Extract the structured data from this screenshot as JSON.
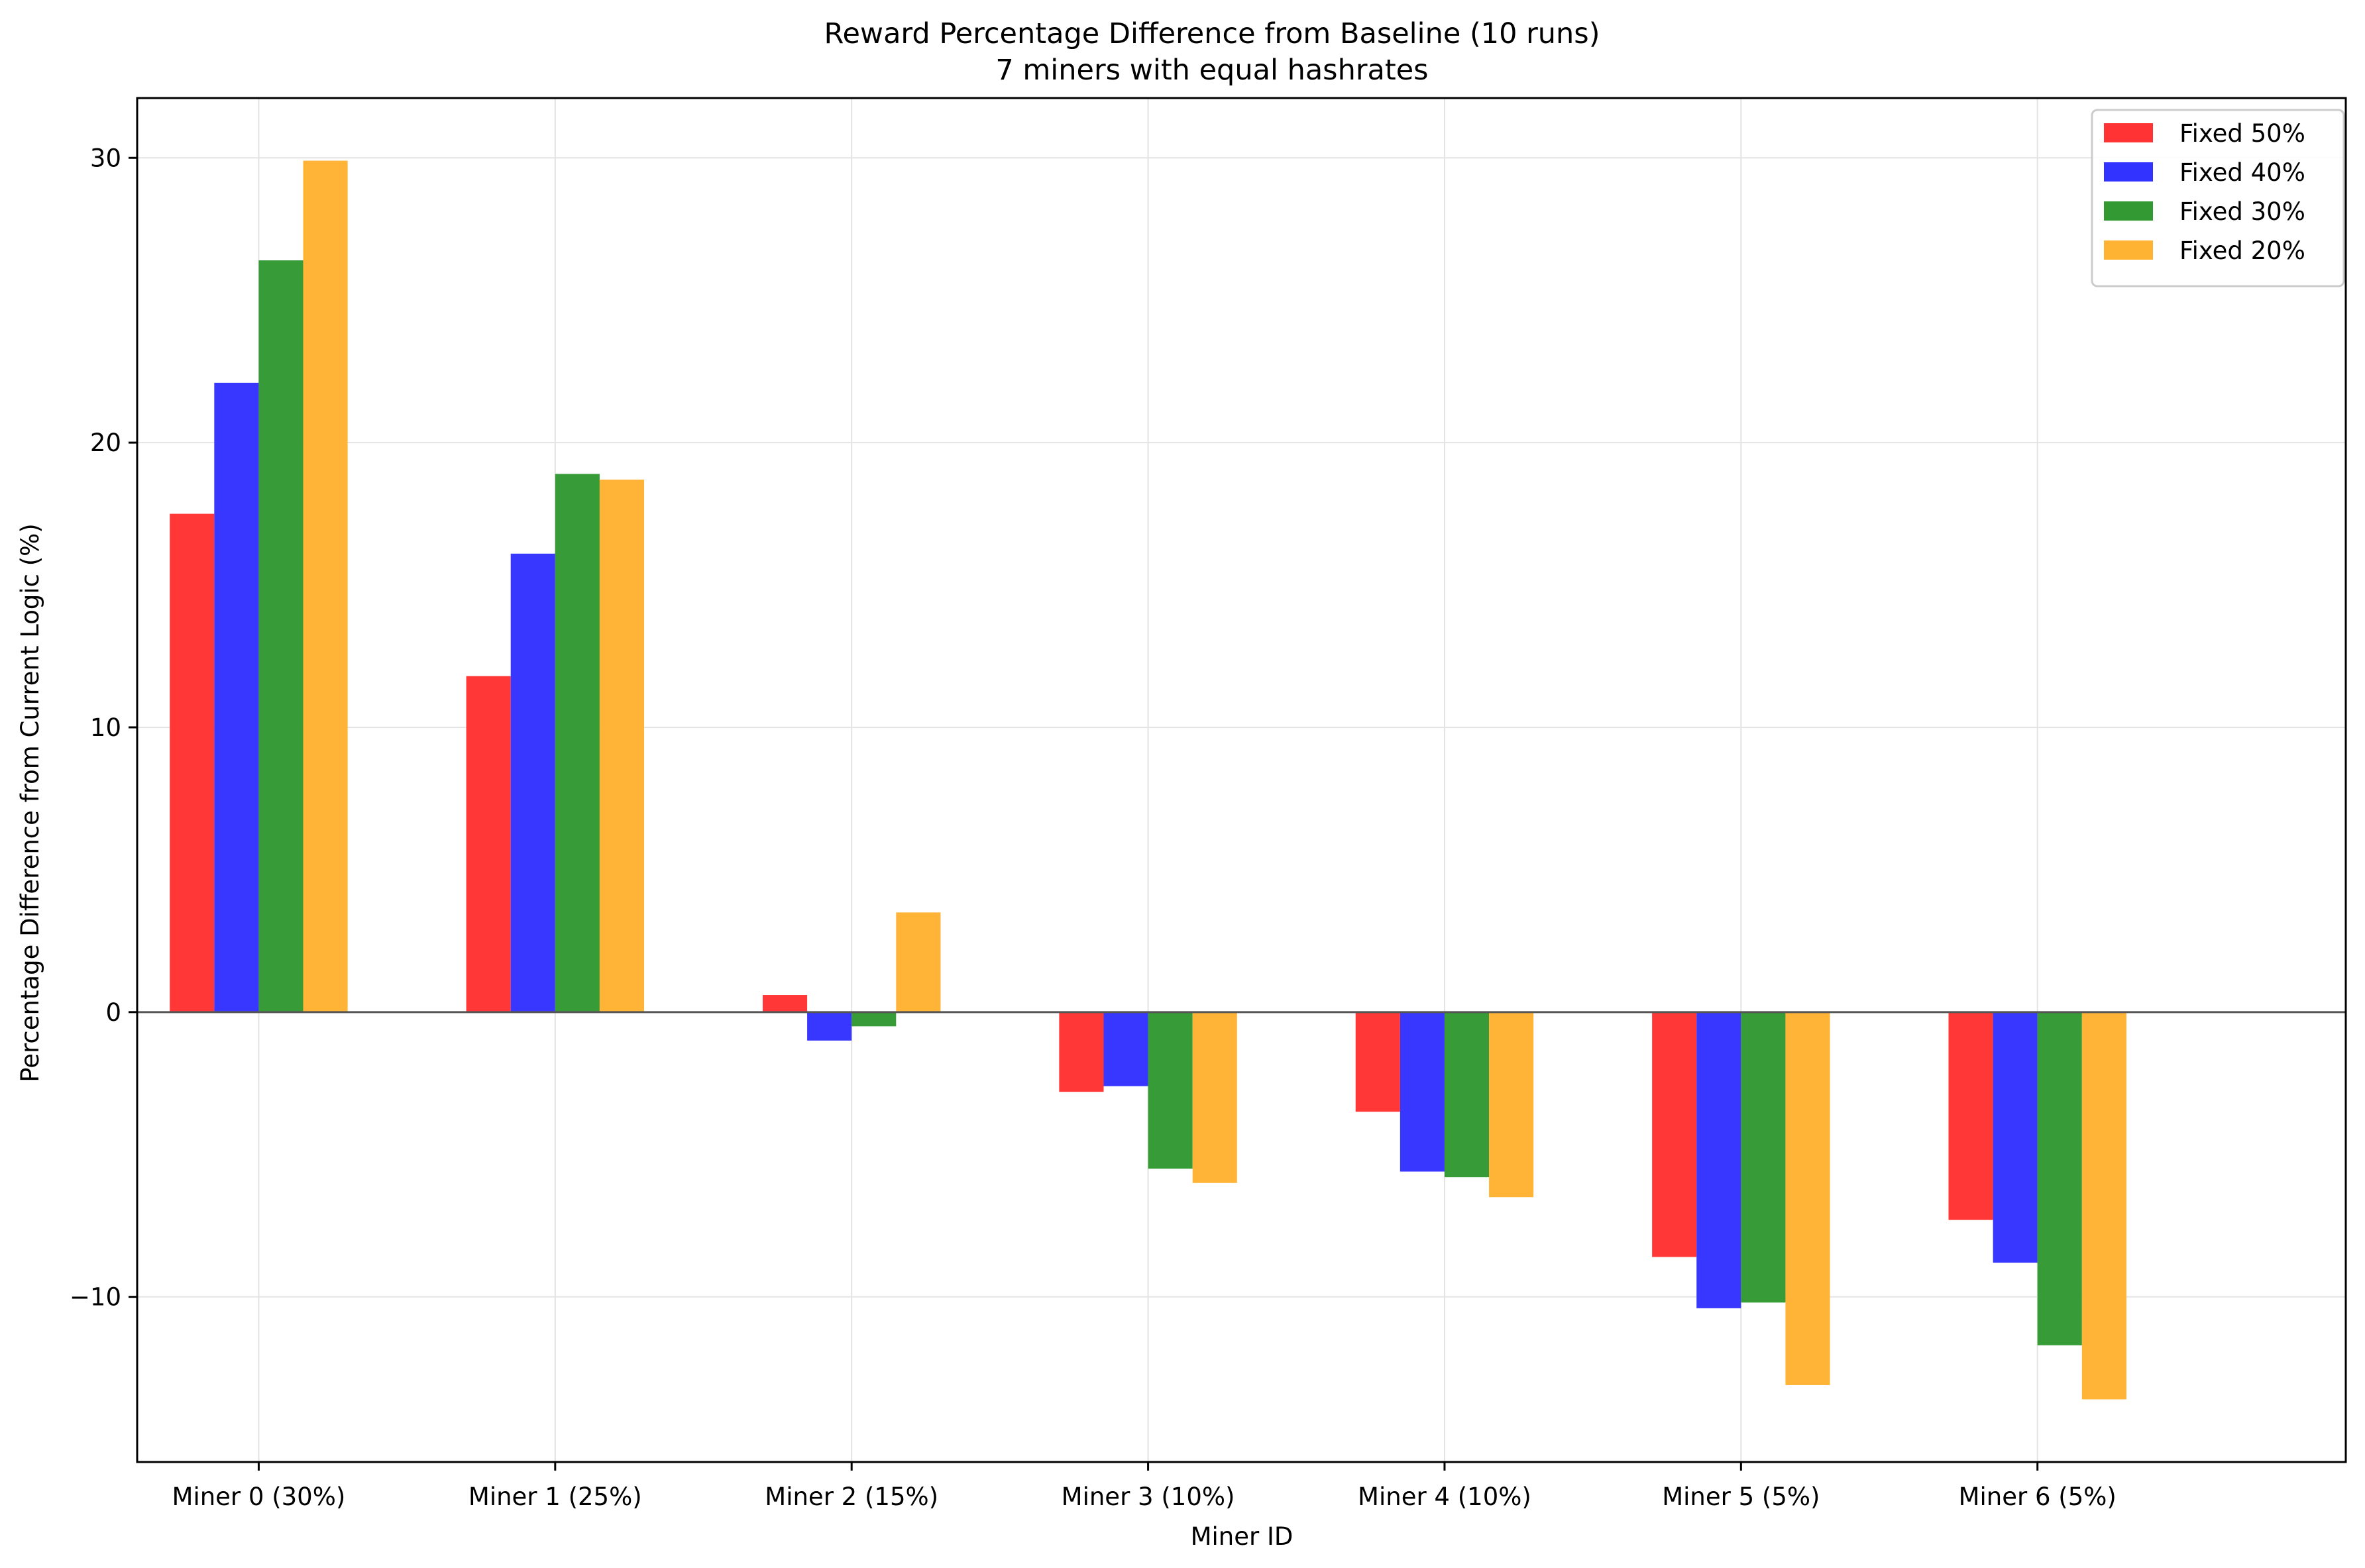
{
  "chart_data": {
    "type": "bar",
    "title": "Reward Percentage Difference from Baseline (10 runs)",
    "subtitle": "7 miners with equal hashrates",
    "xlabel": "Miner ID",
    "ylabel": "Percentage Difference from Current Logic (%)",
    "categories": [
      "Miner 0 (30%)",
      "Miner 1 (25%)",
      "Miner 2 (15%)",
      "Miner 3 (10%)",
      "Miner 4 (10%)",
      "Miner 5 (5%)",
      "Miner 6 (5%)"
    ],
    "series": [
      {
        "name": "Fixed 50%",
        "color": "#ff3333",
        "values": [
          17.5,
          11.8,
          0.6,
          -2.8,
          -3.5,
          -8.6,
          -7.3
        ]
      },
      {
        "name": "Fixed 40%",
        "color": "#3333ff",
        "values": [
          22.1,
          16.1,
          -1.0,
          -2.6,
          -5.6,
          -10.4,
          -8.8
        ]
      },
      {
        "name": "Fixed 30%",
        "color": "#339933",
        "values": [
          26.4,
          18.9,
          -0.5,
          -5.5,
          -5.8,
          -10.2,
          -11.7
        ]
      },
      {
        "name": "Fixed 20%",
        "color": "#ffb333",
        "values": [
          29.9,
          18.7,
          3.5,
          -6.0,
          -6.5,
          -13.1,
          -13.6
        ]
      }
    ],
    "ylim": [
      -15.8,
      32.1
    ],
    "yticks": [
      -10,
      0,
      10,
      20,
      30
    ],
    "ytick_labels": [
      "−10",
      "0",
      "10",
      "20",
      "30"
    ],
    "grid": true,
    "zero_line": true,
    "legend_position": "top-right"
  }
}
